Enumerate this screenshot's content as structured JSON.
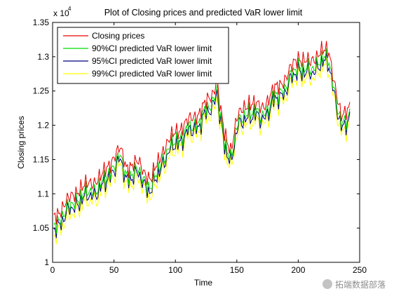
{
  "chart_data": {
    "type": "line",
    "title": "Plot of Closing prices and predicted VaR lower limit",
    "xlabel": "Time",
    "ylabel": "Closing prices",
    "y_multiplier": "x 10",
    "y_multiplier_exp": "4",
    "xlim": [
      0,
      250
    ],
    "ylim": [
      1.0,
      1.35
    ],
    "x_ticks": [
      0,
      50,
      100,
      150,
      200,
      250
    ],
    "y_ticks": [
      1,
      1.05,
      1.1,
      1.15,
      1.2,
      1.25,
      1.3,
      1.35
    ],
    "legend_position": "top-left",
    "grid": false,
    "anchors_x": [
      1,
      10,
      20,
      30,
      40,
      50,
      55,
      60,
      70,
      80,
      90,
      100,
      110,
      120,
      130,
      134,
      136,
      140,
      145,
      150,
      160,
      170,
      180,
      190,
      200,
      210,
      218,
      225,
      230,
      235,
      238,
      242
    ],
    "anchors_closing": [
      1.065,
      1.085,
      1.105,
      1.115,
      1.125,
      1.155,
      1.165,
      1.14,
      1.145,
      1.12,
      1.165,
      1.19,
      1.205,
      1.22,
      1.245,
      1.27,
      1.23,
      1.185,
      1.165,
      1.21,
      1.235,
      1.225,
      1.25,
      1.27,
      1.3,
      1.29,
      1.31,
      1.305,
      1.26,
      1.21,
      1.215,
      1.23
    ],
    "series": [
      {
        "name": "Closing prices",
        "color": "#e60000",
        "offset": 0.0
      },
      {
        "name": "90%CI predicted VaR lower limit",
        "color": "#00dd00",
        "offset": -0.012
      },
      {
        "name": "95%CI predicted VaR lower limit",
        "color": "#000080",
        "offset": -0.018
      },
      {
        "name": "99%CI predicted VaR lower limit",
        "color": "#ffff00",
        "offset": -0.026
      }
    ]
  },
  "watermark": {
    "text": "拓端数据部落"
  }
}
